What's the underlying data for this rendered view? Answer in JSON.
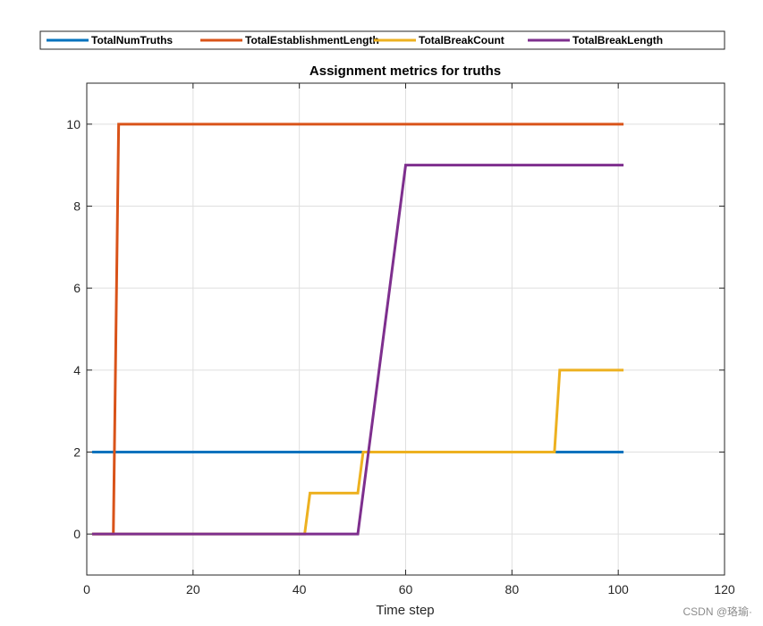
{
  "chart_data": {
    "type": "line",
    "title": "Assignment metrics for truths",
    "xlabel": "Time step",
    "ylabel": "",
    "xlim": [
      0,
      120
    ],
    "ylim": [
      -1,
      11
    ],
    "xticks": [
      0,
      20,
      40,
      60,
      80,
      100,
      120
    ],
    "yticks": [
      0,
      2,
      4,
      6,
      8,
      10
    ],
    "grid": true,
    "legend_position": "top",
    "series": [
      {
        "name": "TotalNumTruths",
        "color": "#0072BD",
        "x": [
          1,
          101
        ],
        "y": [
          2,
          2
        ]
      },
      {
        "name": "TotalEstablishmentLength",
        "color": "#D95319",
        "x": [
          1,
          5,
          6,
          101
        ],
        "y": [
          0,
          0,
          10,
          10
        ]
      },
      {
        "name": "TotalBreakCount",
        "color": "#EDB120",
        "x": [
          1,
          41,
          42,
          51,
          52,
          88,
          89,
          101
        ],
        "y": [
          0,
          0,
          1,
          1,
          2,
          2,
          4,
          4
        ]
      },
      {
        "name": "TotalBreakLength",
        "color": "#7E2F8E",
        "x": [
          1,
          51,
          60,
          101
        ],
        "y": [
          0,
          0,
          9,
          9
        ]
      }
    ]
  },
  "watermark": "CSDN @珞瑜·"
}
